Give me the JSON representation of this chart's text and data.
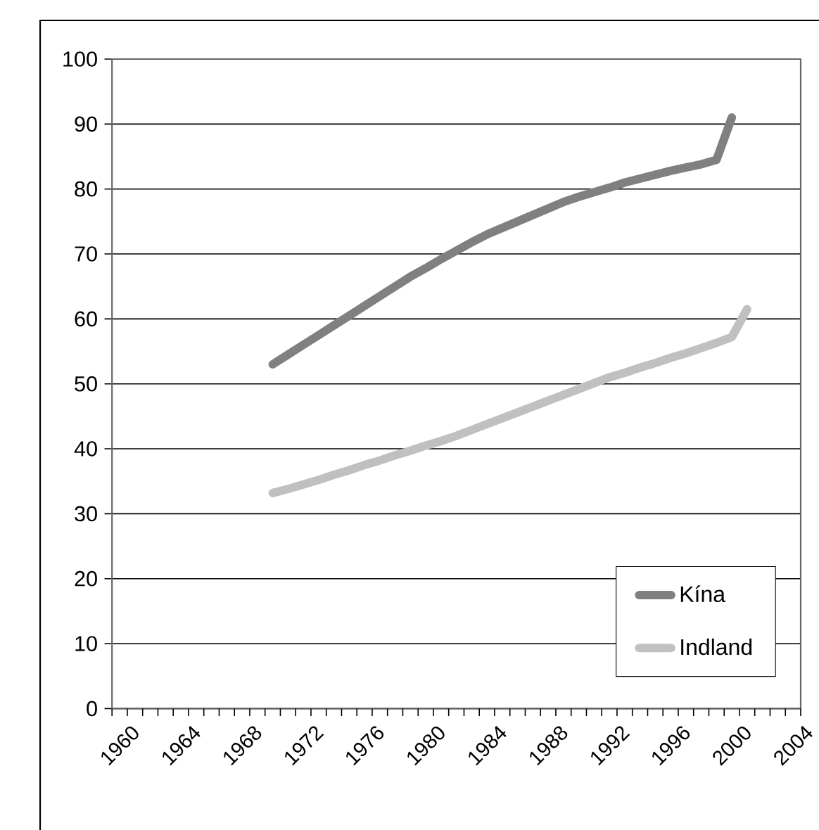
{
  "chart_data": {
    "type": "line",
    "categories": [
      "1960",
      null,
      null,
      null,
      "1964",
      null,
      null,
      null,
      "1968",
      null,
      null,
      null,
      "1972",
      null,
      null,
      null,
      "1976",
      null,
      null,
      null,
      "1980",
      null,
      null,
      null,
      "1984",
      null,
      null,
      null,
      "1988",
      null,
      null,
      null,
      "1992",
      null,
      null,
      null,
      "1996",
      null,
      null,
      null,
      "2000",
      null,
      null,
      null,
      "2004"
    ],
    "series": [
      {
        "name": "Kína",
        "color": "#808080",
        "values": [
          null,
          null,
          null,
          null,
          null,
          null,
          null,
          null,
          null,
          null,
          53,
          54.5,
          56,
          57.5,
          59,
          60.5,
          62,
          63.5,
          65,
          66.5,
          67.8,
          69.2,
          70.5,
          71.8,
          73,
          74,
          75,
          76,
          77,
          78,
          78.8,
          79.5,
          80.2,
          81,
          81.6,
          82.2,
          82.8,
          83.3,
          83.8,
          84.5,
          91,
          null,
          null,
          null,
          null
        ]
      },
      {
        "name": "Indland",
        "color": "#c0c0c0",
        "values": [
          null,
          null,
          null,
          null,
          null,
          null,
          null,
          null,
          null,
          null,
          33.2,
          33.8,
          34.5,
          35.2,
          36,
          36.7,
          37.5,
          38.2,
          39,
          39.7,
          40.5,
          41.2,
          42,
          42.9,
          43.8,
          44.7,
          45.6,
          46.5,
          47.4,
          48.3,
          49.2,
          50.1,
          51,
          51.7,
          52.5,
          53.2,
          54,
          54.7,
          55.5,
          56.3,
          57.2,
          61.5,
          null,
          null,
          null
        ]
      }
    ],
    "ylim": [
      0,
      100
    ],
    "yticks": [
      0,
      10,
      20,
      30,
      40,
      50,
      60,
      70,
      80,
      90,
      100
    ],
    "grid": "y",
    "legend": "bottom right",
    "marker": "none",
    "line_style": "solid"
  }
}
